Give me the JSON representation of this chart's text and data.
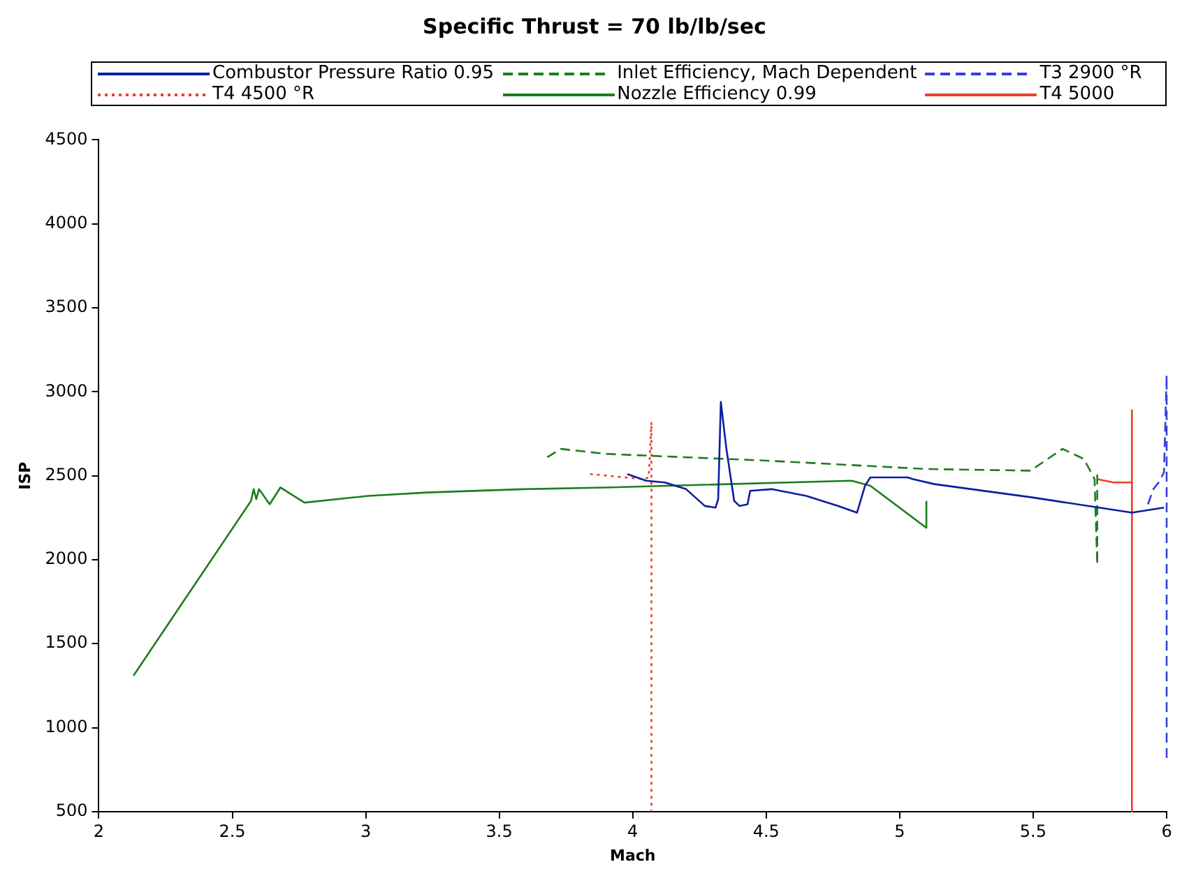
{
  "chart_data": {
    "type": "line",
    "title": "Specific Thrust = 70 lb/lb/sec",
    "xlabel": "Mach",
    "ylabel": "ISP",
    "xlim": [
      2,
      6
    ],
    "xticks": [
      2,
      2.5,
      3,
      3.5,
      4,
      4.5,
      5,
      5.5,
      6
    ],
    "ylim": [
      500,
      4500
    ],
    "yticks": [
      500,
      1000,
      1500,
      2000,
      2500,
      3000,
      3500,
      4000,
      4500
    ],
    "grid": false,
    "legend": "top",
    "marker": "none",
    "series": [
      {
        "name": "Combustor Pressure Ratio 0.95",
        "color": "#0a1ea0",
        "line_style": "solid",
        "x": [
          3.98,
          4.05,
          4.12,
          4.2,
          4.27,
          4.31,
          4.32,
          4.33,
          4.35,
          4.38,
          4.4,
          4.43,
          4.44,
          4.52,
          4.65,
          4.77,
          4.84,
          4.87,
          4.89,
          5.03,
          5.05,
          5.13,
          5.5,
          5.87,
          5.99
        ],
        "values": [
          2510,
          2470,
          2460,
          2420,
          2320,
          2310,
          2360,
          2940,
          2670,
          2350,
          2320,
          2330,
          2410,
          2420,
          2380,
          2320,
          2280,
          2440,
          2490,
          2490,
          2480,
          2450,
          2370,
          2280,
          2310
        ]
      },
      {
        "name": "Inlet Efficiency, Mach Dependent",
        "color": "#1e7d1e",
        "line_style": "dashed",
        "x": [
          3.68,
          3.73,
          3.9,
          4.5,
          5.1,
          5.49,
          5.61,
          5.69,
          5.73,
          5.74,
          5.74
        ],
        "values": [
          2610,
          2660,
          2630,
          2590,
          2540,
          2530,
          2660,
          2600,
          2480,
          1970,
          2530
        ]
      },
      {
        "name": "T3 2900 °R",
        "color": "#3340e0",
        "line_style": "dashed",
        "x": [
          5.93,
          5.95,
          5.97,
          5.99,
          6,
          6
        ],
        "values": [
          2330,
          2420,
          2460,
          2520,
          3100,
          800
        ]
      },
      {
        "name": "T4 4500 °R",
        "color": "#e8402a",
        "line_style": "dotted",
        "x": [
          3.84,
          4.04,
          4.06,
          4.07,
          4.07
        ],
        "values": [
          2510,
          2480,
          2490,
          2820,
          500
        ]
      },
      {
        "name": "Nozzle Efficiency 0.99",
        "color": "#1e7d1e",
        "line_style": "solid",
        "x": [
          2.13,
          2.57,
          2.58,
          2.59,
          2.6,
          2.64,
          2.68,
          2.77,
          3.01,
          3.23,
          3.59,
          3.9,
          4.82,
          4.89,
          5.1,
          5.1
        ],
        "values": [
          1310,
          2350,
          2420,
          2360,
          2420,
          2330,
          2430,
          2340,
          2380,
          2400,
          2420,
          2430,
          2470,
          2440,
          2190,
          2350
        ]
      },
      {
        "name": "T4 5000",
        "color": "#e8402a",
        "line_style": "solid",
        "x": [
          5.74,
          5.8,
          5.87,
          5.87,
          5.87
        ],
        "values": [
          2480,
          2460,
          2460,
          2890,
          500
        ]
      }
    ]
  }
}
